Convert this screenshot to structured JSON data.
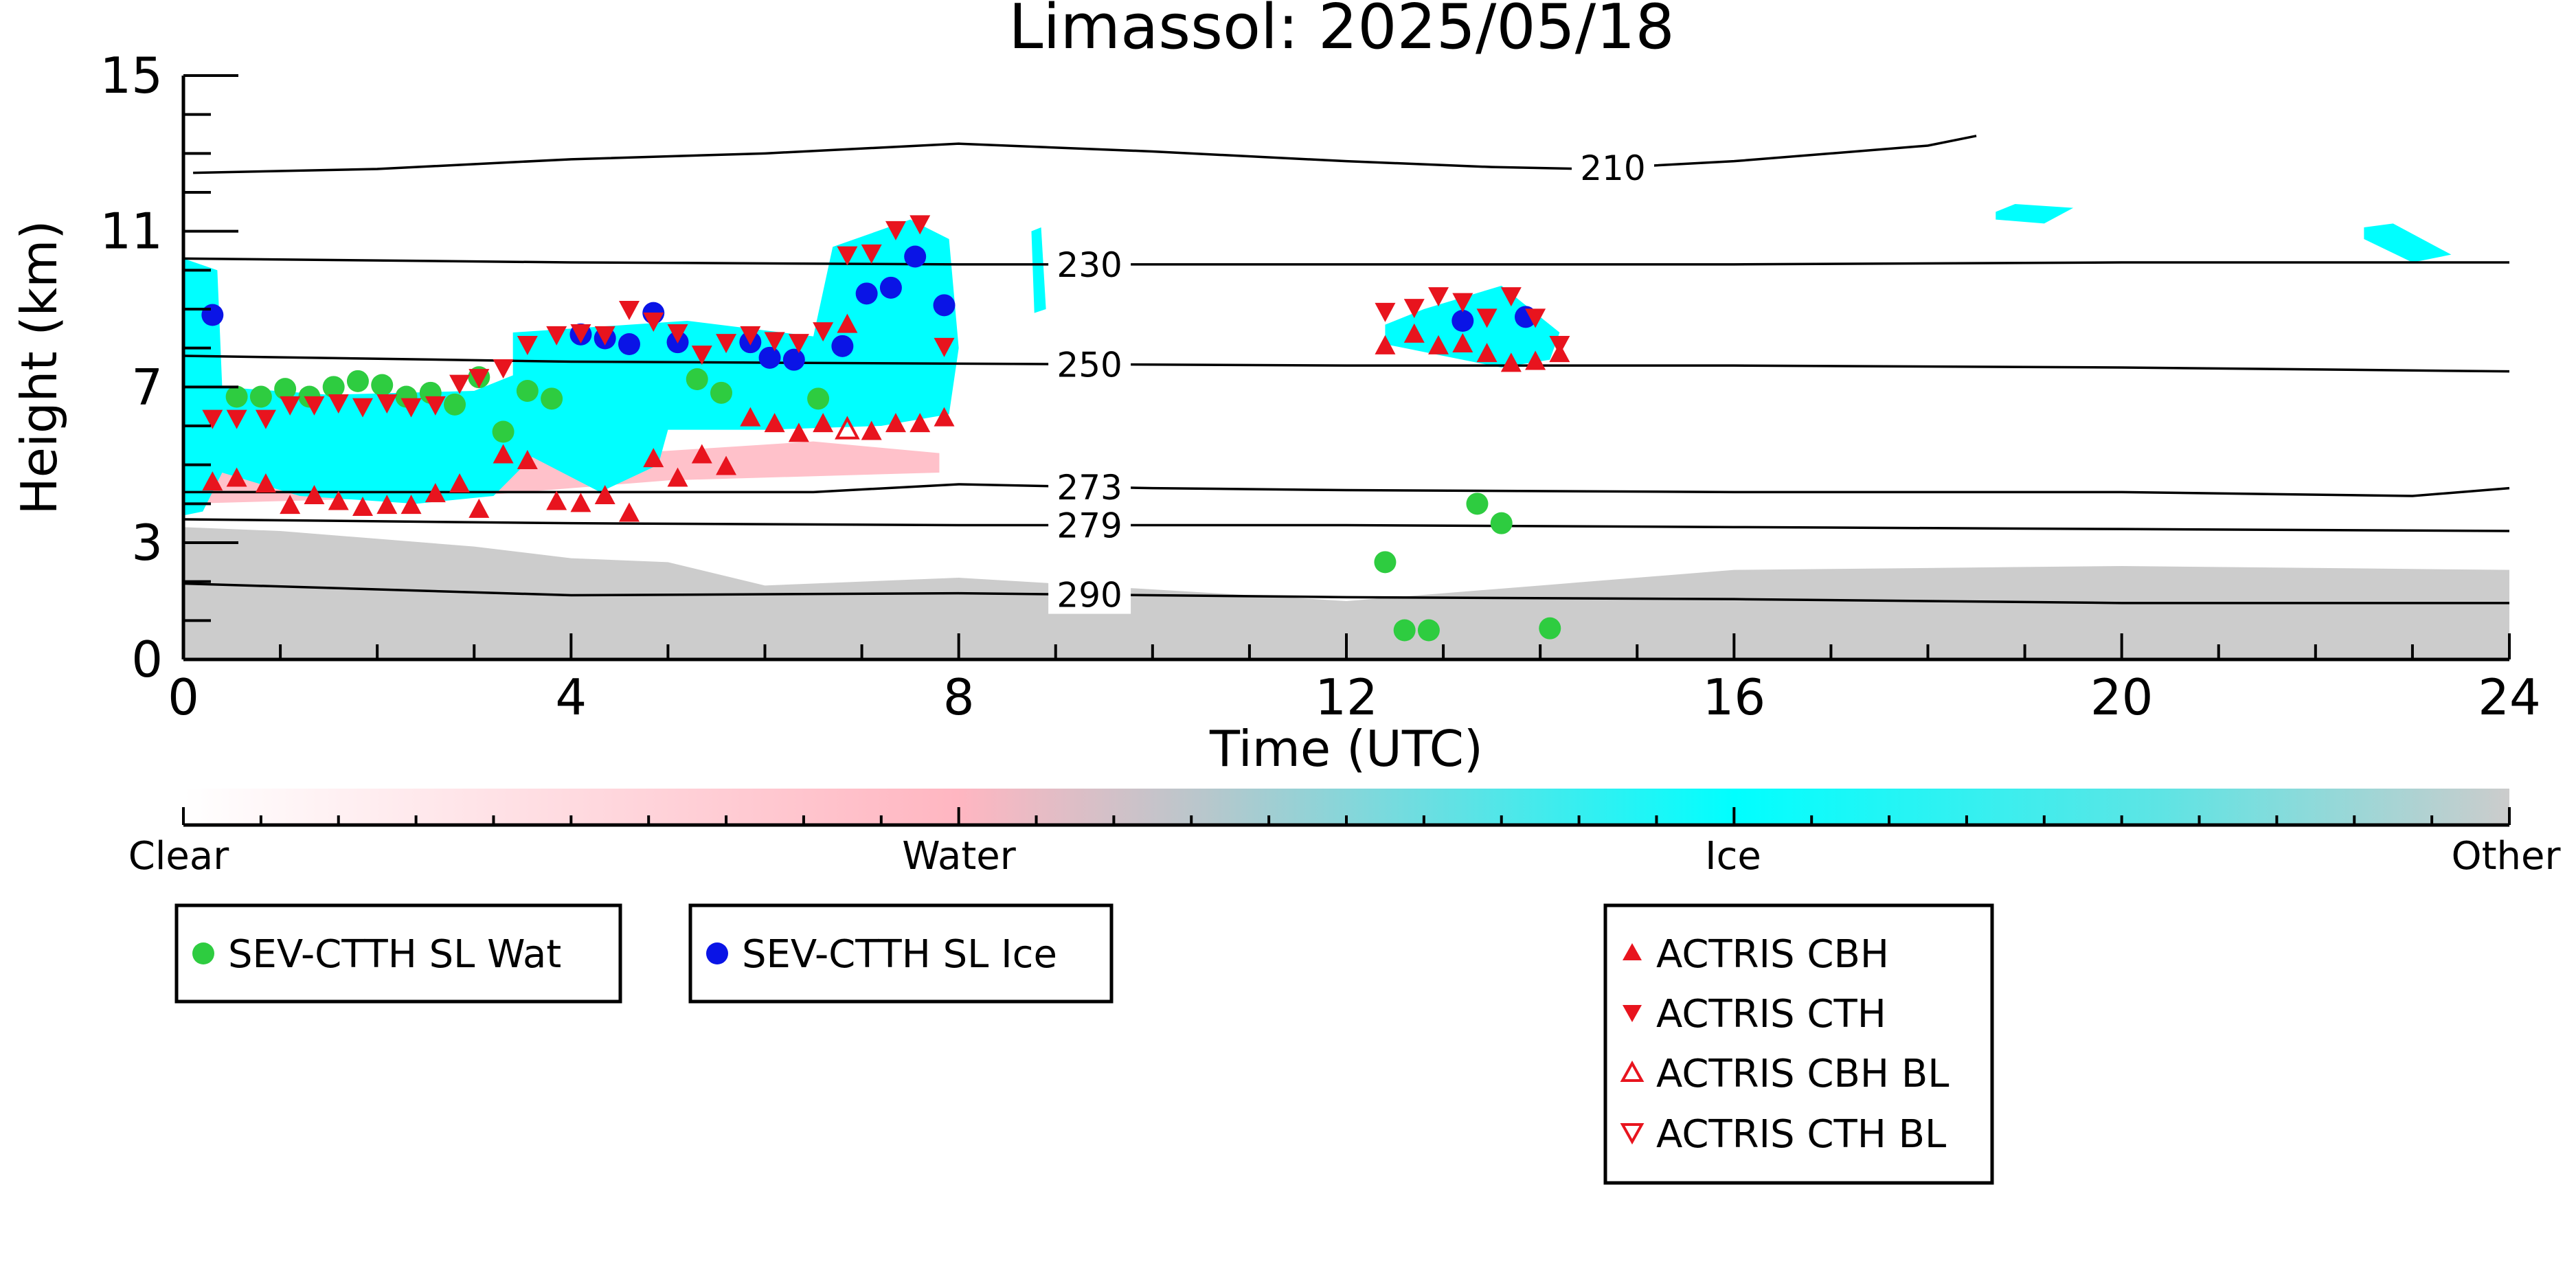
{
  "chart_data": {
    "type": "scatter",
    "title": "Limassol: 2025/05/18",
    "xlabel": "Time (UTC)",
    "ylabel": "Height (km)",
    "xlim": [
      0,
      24
    ],
    "ylim": [
      0,
      15
    ],
    "x_ticks": [
      0,
      4,
      8,
      12,
      16,
      20,
      24
    ],
    "y_ticks": [
      0,
      3,
      7,
      11,
      15
    ],
    "colorbar": {
      "labels": [
        "Clear",
        "Water",
        "Ice",
        "Other"
      ],
      "colors": [
        "#ffffff",
        "#ffb6c1",
        "#00ffff",
        "#cccccc"
      ]
    },
    "isotherms": [
      {
        "label": "210",
        "points": [
          [
            0.1,
            12.5
          ],
          [
            2,
            12.6
          ],
          [
            4,
            12.85
          ],
          [
            6,
            13.0
          ],
          [
            8,
            13.25
          ],
          [
            10,
            13.05
          ],
          [
            12,
            12.8
          ],
          [
            13.5,
            12.65
          ],
          [
            14.5,
            12.6
          ],
          [
            16,
            12.8
          ],
          [
            18,
            13.2
          ],
          [
            18.5,
            13.45
          ]
        ],
        "label_x": 14.75
      },
      {
        "label": "230",
        "points": [
          [
            0,
            10.3
          ],
          [
            4,
            10.2
          ],
          [
            8,
            10.15
          ],
          [
            12,
            10.15
          ],
          [
            16,
            10.15
          ],
          [
            20,
            10.2
          ],
          [
            24,
            10.2
          ]
        ],
        "label_x": 9.35
      },
      {
        "label": "250",
        "points": [
          [
            0,
            7.8
          ],
          [
            4,
            7.65
          ],
          [
            8,
            7.6
          ],
          [
            12,
            7.55
          ],
          [
            16,
            7.55
          ],
          [
            20,
            7.5
          ],
          [
            24,
            7.4
          ]
        ],
        "label_x": 9.35
      },
      {
        "label": "273",
        "points": [
          [
            0,
            4.3
          ],
          [
            4,
            4.3
          ],
          [
            6.5,
            4.3
          ],
          [
            8,
            4.5
          ],
          [
            10,
            4.4
          ],
          [
            12,
            4.35
          ],
          [
            16,
            4.3
          ],
          [
            20,
            4.3
          ],
          [
            23,
            4.2
          ],
          [
            24,
            4.4
          ]
        ],
        "label_x": 9.35
      },
      {
        "label": "279",
        "points": [
          [
            0,
            3.6
          ],
          [
            4,
            3.5
          ],
          [
            8,
            3.45
          ],
          [
            12,
            3.45
          ],
          [
            16,
            3.4
          ],
          [
            20,
            3.35
          ],
          [
            24,
            3.3
          ]
        ],
        "label_x": 9.35
      },
      {
        "label": "290",
        "points": [
          [
            0,
            1.95
          ],
          [
            4,
            1.65
          ],
          [
            8,
            1.7
          ],
          [
            12,
            1.6
          ],
          [
            16,
            1.55
          ],
          [
            20,
            1.45
          ],
          [
            24,
            1.45
          ]
        ],
        "label_x": 9.35
      }
    ],
    "series": [
      {
        "name": "SEV-CTTH SL Wat",
        "marker": "circle",
        "color": "#2ecc40",
        "points": [
          [
            0.55,
            6.75
          ],
          [
            0.8,
            6.75
          ],
          [
            1.05,
            6.95
          ],
          [
            1.3,
            6.75
          ],
          [
            1.55,
            7.0
          ],
          [
            1.8,
            7.15
          ],
          [
            2.05,
            7.05
          ],
          [
            2.3,
            6.75
          ],
          [
            2.55,
            6.85
          ],
          [
            2.8,
            6.55
          ],
          [
            3.05,
            7.25
          ],
          [
            3.3,
            5.85
          ],
          [
            3.55,
            6.9
          ],
          [
            3.8,
            6.7
          ],
          [
            5.3,
            7.2
          ],
          [
            5.55,
            6.85
          ],
          [
            6.55,
            6.7
          ],
          [
            12.4,
            2.5
          ],
          [
            12.6,
            0.75
          ],
          [
            12.85,
            0.75
          ],
          [
            13.35,
            4.0
          ],
          [
            13.6,
            3.5
          ],
          [
            14.1,
            0.8
          ]
        ]
      },
      {
        "name": "SEV-CTTH SL Ice",
        "marker": "circle",
        "color": "#0a14e6",
        "points": [
          [
            0.3,
            8.85
          ],
          [
            4.1,
            8.35
          ],
          [
            4.35,
            8.25
          ],
          [
            4.6,
            8.1
          ],
          [
            4.85,
            8.9
          ],
          [
            5.1,
            8.15
          ],
          [
            5.85,
            8.15
          ],
          [
            6.05,
            7.75
          ],
          [
            6.3,
            7.7
          ],
          [
            6.8,
            8.05
          ],
          [
            7.05,
            9.4
          ],
          [
            7.3,
            9.55
          ],
          [
            7.55,
            10.35
          ],
          [
            7.85,
            9.1
          ],
          [
            13.2,
            8.7
          ],
          [
            13.85,
            8.8
          ]
        ]
      },
      {
        "name": "ACTRIS CBH",
        "marker": "triangle-up",
        "color": "#e8141e",
        "points": [
          [
            0.3,
            4.55
          ],
          [
            0.55,
            4.65
          ],
          [
            0.85,
            4.5
          ],
          [
            1.1,
            3.95
          ],
          [
            1.35,
            4.2
          ],
          [
            1.6,
            4.05
          ],
          [
            1.85,
            3.9
          ],
          [
            2.1,
            3.95
          ],
          [
            2.35,
            3.95
          ],
          [
            2.6,
            4.25
          ],
          [
            2.85,
            4.5
          ],
          [
            3.05,
            3.85
          ],
          [
            3.3,
            5.25
          ],
          [
            3.55,
            5.1
          ],
          [
            3.85,
            4.05
          ],
          [
            4.1,
            4.0
          ],
          [
            4.35,
            4.2
          ],
          [
            4.6,
            3.75
          ],
          [
            4.85,
            5.15
          ],
          [
            5.1,
            4.65
          ],
          [
            5.35,
            5.25
          ],
          [
            5.6,
            4.95
          ],
          [
            5.85,
            6.2
          ],
          [
            6.1,
            6.05
          ],
          [
            6.35,
            5.8
          ],
          [
            6.6,
            6.05
          ],
          [
            6.85,
            8.6
          ],
          [
            7.1,
            5.85
          ],
          [
            7.35,
            6.05
          ],
          [
            7.6,
            6.05
          ],
          [
            7.85,
            6.2
          ],
          [
            12.4,
            8.05
          ],
          [
            12.7,
            8.35
          ],
          [
            12.95,
            8.05
          ],
          [
            13.2,
            8.1
          ],
          [
            13.45,
            7.85
          ],
          [
            13.7,
            7.6
          ],
          [
            13.95,
            7.65
          ],
          [
            14.2,
            7.85
          ]
        ]
      },
      {
        "name": "ACTRIS CTH",
        "marker": "triangle-down",
        "color": "#e8141e",
        "points": [
          [
            0.3,
            6.2
          ],
          [
            0.55,
            6.2
          ],
          [
            0.85,
            6.2
          ],
          [
            1.1,
            6.55
          ],
          [
            1.35,
            6.55
          ],
          [
            1.6,
            6.6
          ],
          [
            1.85,
            6.5
          ],
          [
            2.1,
            6.6
          ],
          [
            2.35,
            6.5
          ],
          [
            2.6,
            6.55
          ],
          [
            2.85,
            7.1
          ],
          [
            3.05,
            7.25
          ],
          [
            3.3,
            7.5
          ],
          [
            3.55,
            8.1
          ],
          [
            3.85,
            8.35
          ],
          [
            4.1,
            8.4
          ],
          [
            4.35,
            8.35
          ],
          [
            4.6,
            9.0
          ],
          [
            4.85,
            8.7
          ],
          [
            5.1,
            8.4
          ],
          [
            5.35,
            7.85
          ],
          [
            5.6,
            8.15
          ],
          [
            5.85,
            8.35
          ],
          [
            6.1,
            8.2
          ],
          [
            6.35,
            8.15
          ],
          [
            6.6,
            8.45
          ],
          [
            6.85,
            10.4
          ],
          [
            7.1,
            10.45
          ],
          [
            7.35,
            11.05
          ],
          [
            7.6,
            11.2
          ],
          [
            7.85,
            8.05
          ],
          [
            12.4,
            8.95
          ],
          [
            12.7,
            9.05
          ],
          [
            12.95,
            9.35
          ],
          [
            13.2,
            9.2
          ],
          [
            13.45,
            8.8
          ],
          [
            13.7,
            9.35
          ],
          [
            13.95,
            8.8
          ],
          [
            14.2,
            8.1
          ]
        ]
      },
      {
        "name": "ACTRIS CBH BL",
        "marker": "triangle-up-open",
        "color": "#e8141e",
        "points": [
          [
            6.85,
            5.9
          ]
        ]
      },
      {
        "name": "ACTRIS CTH BL",
        "marker": "triangle-down-open",
        "color": "#e8141e",
        "points": []
      }
    ],
    "legend_groups": [
      [
        "SEV-CTTH SL Wat"
      ],
      [
        "SEV-CTTH SL Ice"
      ],
      [
        "ACTRIS CBH",
        "ACTRIS CTH",
        "ACTRIS CBH BL",
        "ACTRIS CTH BL"
      ]
    ],
    "grid": false
  }
}
